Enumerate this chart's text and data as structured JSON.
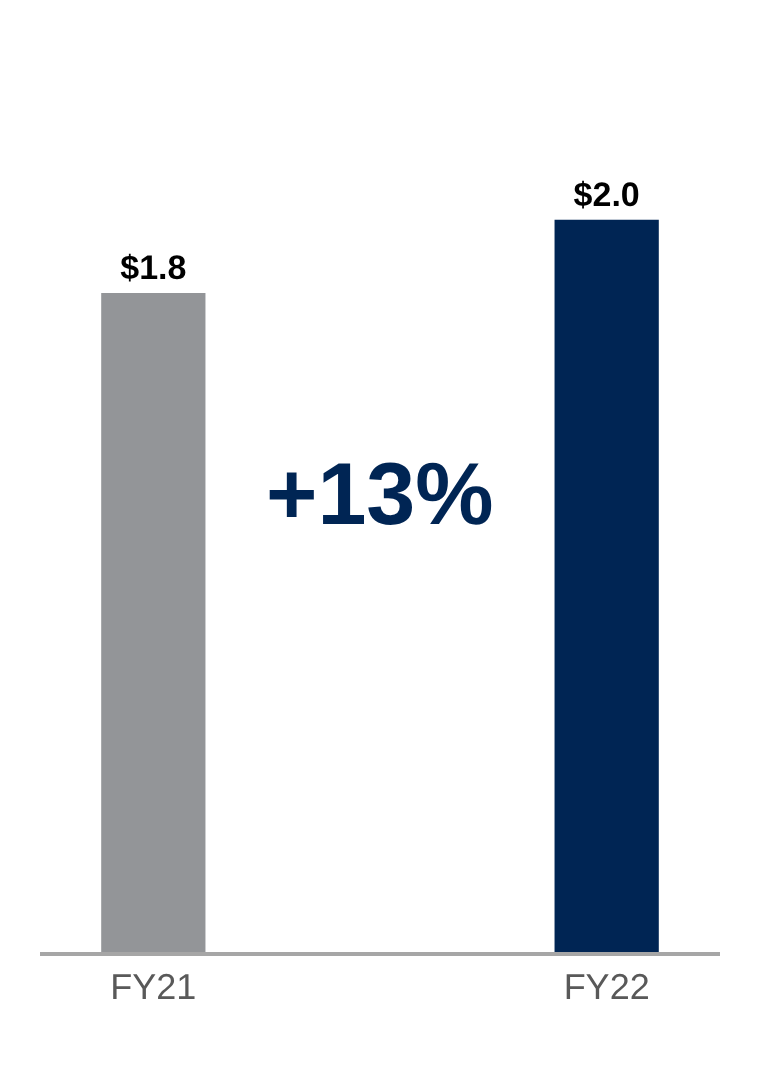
{
  "chart_data": {
    "type": "bar",
    "categories": [
      "FY21",
      "FY22"
    ],
    "values": [
      1.8,
      2.0
    ],
    "value_labels": [
      "$1.8",
      "$2.0"
    ],
    "colors": [
      "#939598",
      "#002554"
    ],
    "ylim": [
      0,
      2.6
    ],
    "annotations": [
      "+13%"
    ],
    "legend": false
  }
}
